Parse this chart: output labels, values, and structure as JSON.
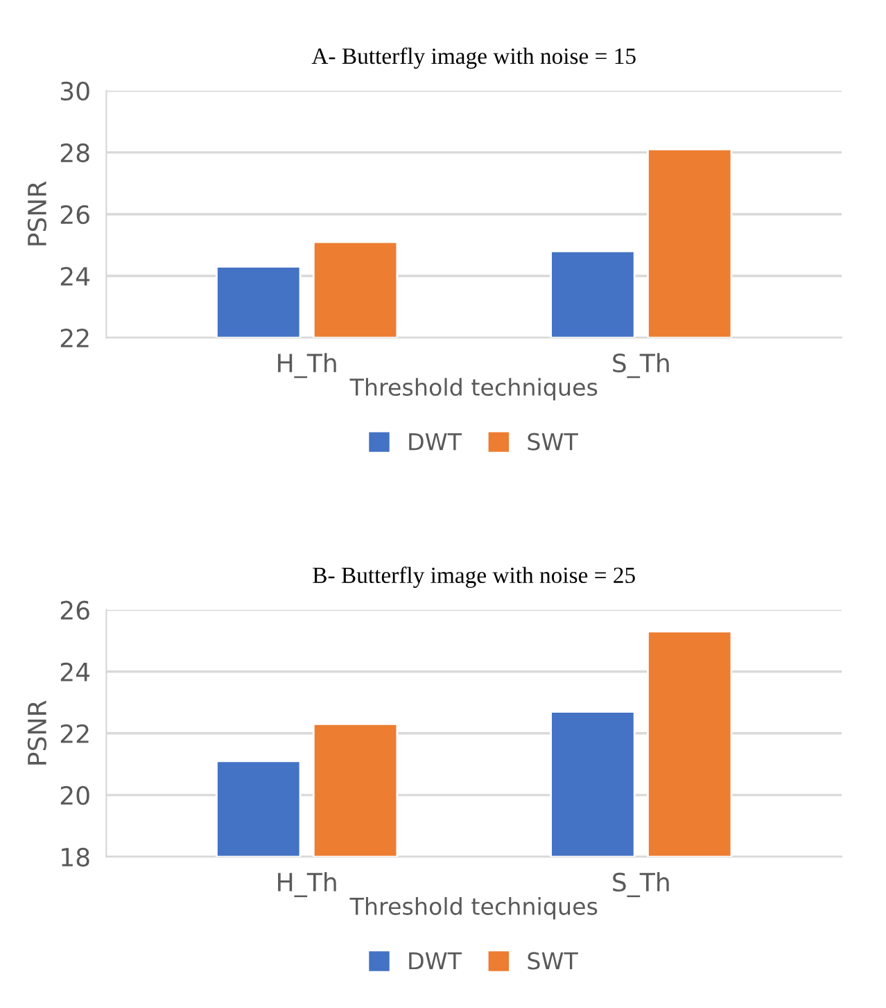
{
  "chart_data": [
    {
      "type": "bar",
      "title": "A- Butterfly image with noise = 15",
      "xlabel": "Threshold techniques",
      "ylabel": "PSNR",
      "categories": [
        "H_Th",
        "S_Th"
      ],
      "series": [
        {
          "name": "DWT",
          "color": "#4472c4",
          "values": [
            24.3,
            24.8
          ]
        },
        {
          "name": "SWT",
          "color": "#ed7d31",
          "values": [
            25.1,
            28.1
          ]
        }
      ],
      "ylim": [
        22,
        30
      ],
      "yticks": [
        22,
        24,
        26,
        28,
        30
      ],
      "grid": "y",
      "legend": "bottom"
    },
    {
      "type": "bar",
      "title": "B- Butterfly image with noise = 25",
      "xlabel": "Threshold techniques",
      "ylabel": "PSNR",
      "categories": [
        "H_Th",
        "S_Th"
      ],
      "series": [
        {
          "name": "DWT",
          "color": "#4472c4",
          "values": [
            21.1,
            22.7
          ]
        },
        {
          "name": "SWT",
          "color": "#ed7d31",
          "values": [
            22.3,
            25.3
          ]
        }
      ],
      "ylim": [
        18,
        26
      ],
      "yticks": [
        18,
        20,
        22,
        24,
        26
      ],
      "grid": "y",
      "legend": "bottom"
    }
  ]
}
